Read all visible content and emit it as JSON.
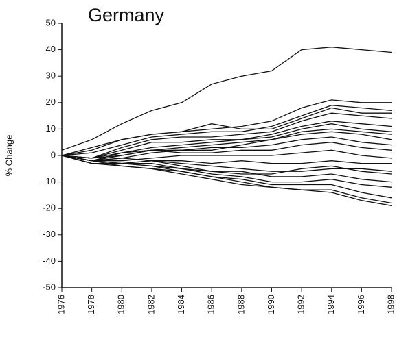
{
  "chart_data": {
    "type": "line",
    "title": "Germany",
    "y_label": "% Change",
    "x": [
      1976,
      1978,
      1980,
      1982,
      1984,
      1986,
      1988,
      1990,
      1992,
      1994,
      1996,
      1998
    ],
    "xlim": [
      1976,
      1998
    ],
    "xticks": [
      1976,
      1978,
      1980,
      1982,
      1984,
      1986,
      1988,
      1990,
      1992,
      1994,
      1996,
      1998
    ],
    "ylim": [
      -50,
      50
    ],
    "yticks": [
      -50,
      -40,
      -30,
      -20,
      -10,
      0,
      10,
      20,
      30,
      40,
      50
    ],
    "grid": false,
    "series": [
      {
        "color": "#111",
        "values": [
          2,
          6,
          12,
          17,
          20,
          27,
          30,
          32,
          40,
          41,
          40,
          39
        ]
      },
      {
        "color": "#111",
        "values": [
          0,
          3,
          6,
          8,
          9,
          12,
          10,
          10,
          14,
          18,
          16,
          16
        ]
      },
      {
        "color": "#111",
        "values": [
          0,
          2,
          6,
          8,
          9,
          10,
          11,
          13,
          18,
          21,
          20,
          20
        ]
      },
      {
        "color": "#111",
        "values": [
          0,
          1,
          4,
          7,
          8,
          9,
          9,
          11,
          15,
          19,
          18,
          17
        ]
      },
      {
        "color": "#111",
        "values": [
          0,
          -1,
          3,
          6,
          7,
          7,
          8,
          9,
          13,
          16,
          15,
          14
        ]
      },
      {
        "color": "#111",
        "values": [
          0,
          -1,
          2,
          5,
          5,
          6,
          6,
          8,
          11,
          13,
          12,
          11
        ]
      },
      {
        "color": "#111",
        "values": [
          0,
          -2,
          1,
          3,
          4,
          5,
          6,
          7,
          10,
          12,
          10,
          9
        ]
      },
      {
        "color": "#111",
        "values": [
          0,
          -2,
          0,
          2,
          3,
          4,
          5,
          6,
          9,
          10,
          9,
          8
        ]
      },
      {
        "color": "#111",
        "values": [
          0,
          -1,
          1,
          2,
          2,
          2,
          4,
          6,
          8,
          9,
          8,
          6
        ]
      },
      {
        "color": "#111",
        "values": [
          0,
          -2,
          -1,
          1,
          2,
          3,
          3,
          4,
          6,
          7,
          5,
          4
        ]
      },
      {
        "color": "#111",
        "values": [
          0,
          -1,
          0,
          2,
          1,
          1,
          2,
          2,
          4,
          5,
          3,
          2
        ]
      },
      {
        "color": "#111",
        "values": [
          0,
          -2,
          -2,
          -1,
          0,
          0,
          0,
          0,
          1,
          2,
          0,
          -1
        ]
      },
      {
        "color": "#111",
        "values": [
          0,
          -2,
          -3,
          -2,
          -2,
          -3,
          -2,
          -3,
          -3,
          -2,
          -3,
          -3
        ]
      },
      {
        "color": "#111",
        "values": [
          0,
          -3,
          -3,
          -2,
          -3,
          -4,
          -5,
          -6,
          -6,
          -5,
          -5,
          -6
        ]
      },
      {
        "color": "#111",
        "values": [
          0,
          -2,
          -1,
          -2,
          -4,
          -6,
          -7,
          -7,
          -5,
          -4,
          -6,
          -7
        ]
      },
      {
        "color": "#111",
        "values": [
          0,
          -3,
          -3,
          -4,
          -5,
          -6,
          -6,
          -8,
          -8,
          -7,
          -9,
          -10
        ]
      },
      {
        "color": "#111",
        "values": [
          0,
          -2,
          -3,
          -3,
          -5,
          -7,
          -8,
          -10,
          -10,
          -9,
          -11,
          -12
        ]
      },
      {
        "color": "#111",
        "values": [
          0,
          -3,
          -3,
          -4,
          -6,
          -8,
          -9,
          -11,
          -11,
          -11,
          -14,
          -16
        ]
      },
      {
        "color": "#111",
        "values": [
          0,
          -2,
          -4,
          -5,
          -6,
          -8,
          -10,
          -12,
          -13,
          -13,
          -16,
          -18
        ]
      },
      {
        "color": "#111",
        "values": [
          0,
          -3,
          -4,
          -5,
          -7,
          -9,
          -11,
          -12,
          -13,
          -14,
          -17,
          -19
        ]
      }
    ]
  }
}
